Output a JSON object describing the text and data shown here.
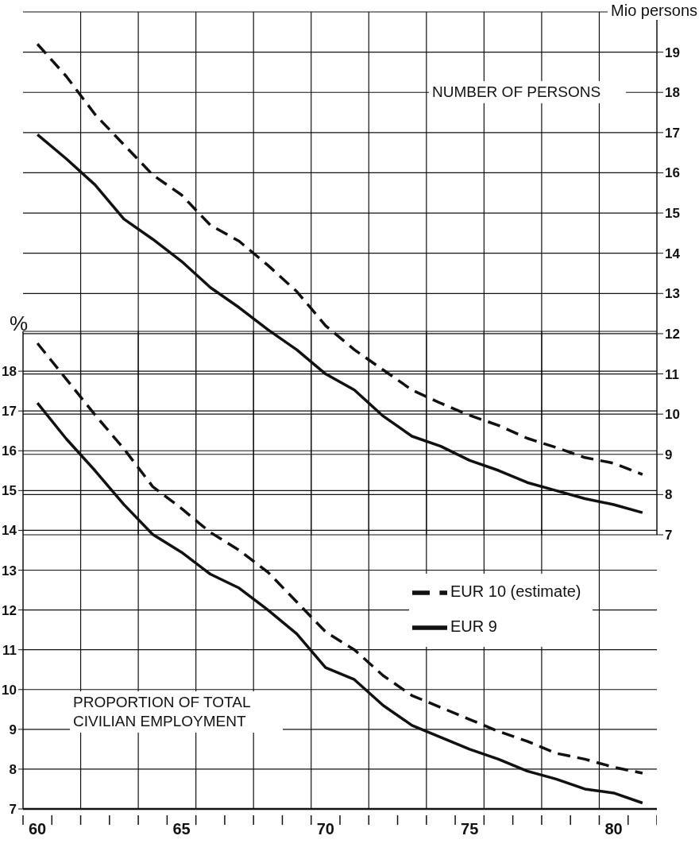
{
  "chart_data": {
    "type": "line",
    "ylabel": "%",
    "y2label": "Mio persons",
    "annotations": [
      "NUMBER OF PERSONS",
      "PROPORTION OF TOTAL CIVILIAN EMPLOYMENT"
    ],
    "categories": [
      "60",
      null,
      null,
      null,
      null,
      "65",
      null,
      null,
      null,
      null,
      "70",
      null,
      null,
      null,
      null,
      "75",
      null,
      null,
      null,
      null,
      "80",
      null
    ],
    "ylim": [
      7,
      19
    ],
    "yticks": [
      7,
      8,
      9,
      10,
      11,
      12,
      13,
      14,
      15,
      16,
      17,
      18
    ],
    "y2lim": [
      7,
      20
    ],
    "y2ticks": [
      7,
      8,
      9,
      10,
      11,
      12,
      13,
      14,
      15,
      16,
      17,
      18,
      19
    ],
    "grid": true,
    "legend": "right",
    "series": [
      {
        "name": "EUR 9",
        "color": "#111111",
        "line_style": "solid",
        "values": [
          17.2,
          16.3,
          15.5,
          14.65,
          13.9,
          13.45,
          12.9,
          12.55,
          12.0,
          11.4,
          10.55,
          10.25,
          9.6,
          9.1,
          8.8,
          8.5,
          8.25,
          7.95,
          7.75,
          7.5,
          7.4,
          7.15
        ]
      },
      {
        "name": "EUR 10 (estimate)",
        "color": "#111111",
        "line_style": "dashed",
        "values": [
          18.7,
          17.8,
          16.9,
          16.05,
          15.1,
          14.55,
          13.95,
          13.5,
          12.95,
          12.2,
          11.45,
          11.0,
          10.35,
          9.85,
          9.55,
          9.25,
          8.95,
          8.7,
          8.4,
          8.25,
          8.05,
          7.9
        ]
      },
      {
        "color": "#111111",
        "line_style": "solid",
        "axis": "y2",
        "values": [
          16.95,
          16.35,
          15.7,
          14.85,
          14.35,
          13.8,
          13.15,
          12.65,
          12.1,
          11.6,
          11.0,
          10.6,
          9.95,
          9.45,
          9.2,
          8.85,
          8.6,
          8.3,
          8.1,
          7.9,
          7.75,
          7.55
        ]
      },
      {
        "color": "#111111",
        "line_style": "dashed",
        "axis": "y2",
        "values": [
          19.2,
          18.4,
          17.45,
          16.7,
          15.95,
          15.45,
          14.7,
          14.3,
          13.7,
          13.05,
          12.2,
          11.6,
          11.1,
          10.6,
          10.27,
          9.97,
          9.72,
          9.4,
          9.17,
          8.92,
          8.78,
          8.5
        ]
      }
    ]
  }
}
